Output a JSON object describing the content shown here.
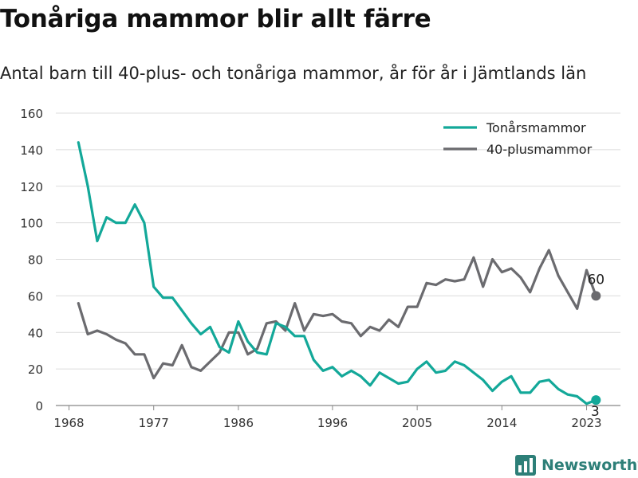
{
  "header": {
    "title": "Tonåriga mammor blir allt färre",
    "subtitle": "Antal barn till 40-plus- och tonåriga mammor, år för år i Jämtlands län"
  },
  "brand": {
    "name": "Newsworthy",
    "icon": "newsworthy-bar-logo-icon"
  },
  "colors": {
    "teal": "#13a899",
    "gray": "#6b6b6f",
    "grid": "#dcdcdc",
    "axis": "#888888"
  },
  "chart_data": {
    "type": "line",
    "title": "",
    "xlabel": "",
    "ylabel": "",
    "xlim": [
      1968,
      2024
    ],
    "ylim": [
      0,
      160
    ],
    "yticks": [
      0,
      20,
      40,
      60,
      80,
      100,
      120,
      140,
      160
    ],
    "xticks": [
      1968,
      1977,
      1986,
      1996,
      2005,
      2014,
      2023
    ],
    "grid": "horizontal",
    "legend_position": "top-right",
    "x": [
      1969,
      1970,
      1971,
      1972,
      1973,
      1974,
      1975,
      1976,
      1977,
      1978,
      1979,
      1980,
      1981,
      1982,
      1983,
      1984,
      1985,
      1986,
      1987,
      1988,
      1989,
      1990,
      1991,
      1992,
      1993,
      1994,
      1995,
      1996,
      1997,
      1998,
      1999,
      2000,
      2001,
      2002,
      2003,
      2004,
      2005,
      2006,
      2007,
      2008,
      2009,
      2010,
      2011,
      2012,
      2013,
      2014,
      2015,
      2016,
      2017,
      2018,
      2019,
      2020,
      2021,
      2022,
      2023
    ],
    "series": [
      {
        "name": "Tonårsmammor",
        "color": "#13a899",
        "end_label": "3",
        "values": [
          144,
          120,
          90,
          103,
          100,
          100,
          110,
          100,
          65,
          59,
          59,
          52,
          45,
          39,
          43,
          32,
          29,
          46,
          35,
          29,
          28,
          45,
          43,
          38,
          38,
          25,
          19,
          21,
          16,
          19,
          16,
          11,
          18,
          15,
          12,
          13,
          20,
          24,
          18,
          19,
          24,
          22,
          18,
          14,
          8,
          13,
          16,
          7,
          7,
          13,
          14,
          9,
          6,
          5,
          1
        ]
      },
      {
        "name": "40-plusmammor",
        "color": "#6b6b6f",
        "end_label": "60",
        "values": [
          56,
          39,
          41,
          39,
          36,
          34,
          28,
          28,
          15,
          23,
          22,
          33,
          21,
          19,
          24,
          29,
          40,
          40,
          28,
          31,
          45,
          46,
          41,
          56,
          41,
          50,
          49,
          50,
          46,
          45,
          38,
          43,
          41,
          47,
          43,
          54,
          54,
          67,
          66,
          69,
          68,
          69,
          81,
          65,
          80,
          73,
          75,
          70,
          62,
          75,
          85,
          71,
          62,
          53,
          74
        ]
      }
    ],
    "end_point": {
      "x": 2024,
      "values": {
        "Tonårsmammor": 3,
        "40-plusmammor": 60
      }
    }
  }
}
